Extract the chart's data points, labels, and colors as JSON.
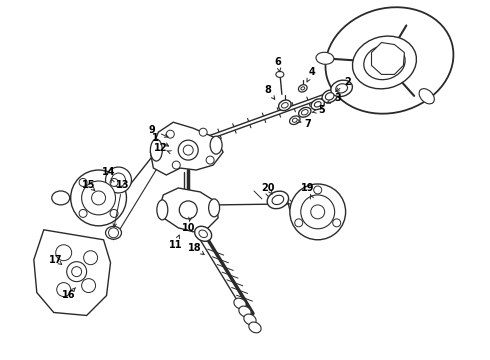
{
  "bg_color": "#ffffff",
  "line_color": "#2a2a2a",
  "label_color": "#000000",
  "figsize": [
    4.9,
    3.6
  ],
  "dpi": 100
}
